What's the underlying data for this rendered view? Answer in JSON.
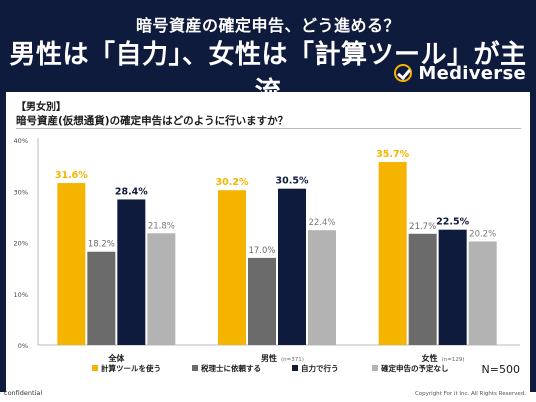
{
  "header": {
    "subtitle": "暗号資産の確定申告、どう進める？",
    "title": "男性は「自力」、女性は「計算ツール」が主流",
    "logo_text": "Mediverse"
  },
  "panel": {
    "section_tag": "【男女別】",
    "question": "暗号資産(仮想通貨)の確定申告はどのように行いますか？",
    "sample_size": "N=500"
  },
  "footer": {
    "confidential": "confidential",
    "copyright": "Copyright For it Inc. All Rights Reserved."
  },
  "chart_data": {
    "type": "bar",
    "categories": [
      "全体",
      "男性",
      "女性"
    ],
    "category_notes": [
      "",
      "(n=371)",
      "(n=129)"
    ],
    "series": [
      {
        "name": "計算ツールを使う",
        "values": [
          31.6,
          30.2,
          35.7
        ],
        "color": "#f5b400"
      },
      {
        "name": "税理士に依頼する",
        "values": [
          18.2,
          17.0,
          21.7
        ],
        "color": "#6b6b6b"
      },
      {
        "name": "自力で行う",
        "values": [
          28.4,
          30.5,
          22.5
        ],
        "color": "#0f1b3d"
      },
      {
        "name": "確定申告の予定なし",
        "values": [
          21.8,
          22.4,
          20.2
        ],
        "color": "#b3b3b3"
      }
    ],
    "value_label_color": [
      "#f5b400",
      "#6b6b6b",
      "#0f1b3d",
      "#7a7a7a"
    ],
    "ylim": [
      0,
      40
    ],
    "yticks": [
      "0%",
      "10%",
      "20%",
      "30%",
      "40%"
    ],
    "grid": false,
    "legend_position": "bottom"
  }
}
